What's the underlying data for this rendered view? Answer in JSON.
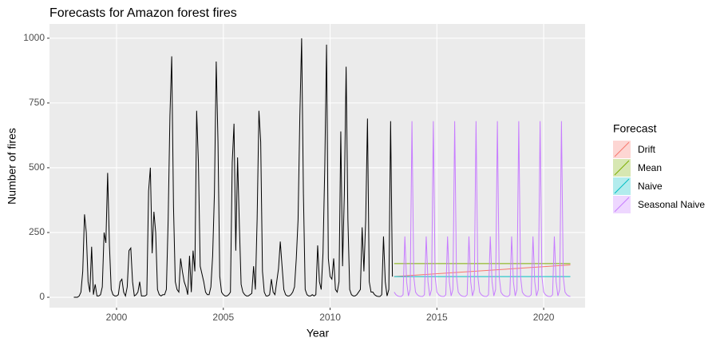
{
  "chart_data": {
    "type": "line",
    "title": "Forecasts for Amazon forest fires",
    "xlabel": "Year",
    "ylabel": "Number of fires",
    "xlim": [
      1996.86,
      2021.94
    ],
    "ylim": [
      -40,
      1055
    ],
    "xticks": [
      2000,
      2005,
      2010,
      2015,
      2020
    ],
    "yticks": [
      0,
      250,
      500,
      750,
      1000
    ],
    "grid": true,
    "legend_title": "Forecast",
    "legend_position": "right",
    "observed": {
      "color": "#000000",
      "x": [
        1998,
        1998.083,
        1998.167,
        1998.25,
        1998.333,
        1998.417,
        1998.5,
        1998.583,
        1998.667,
        1998.75,
        1998.833,
        1998.917,
        1999,
        1999.083,
        1999.167,
        1999.25,
        1999.333,
        1999.417,
        1999.5,
        1999.583,
        1999.667,
        1999.75,
        1999.833,
        1999.917,
        2000,
        2000.083,
        2000.167,
        2000.25,
        2000.333,
        2000.417,
        2000.5,
        2000.583,
        2000.667,
        2000.75,
        2000.833,
        2000.917,
        2001,
        2001.083,
        2001.167,
        2001.25,
        2001.333,
        2001.417,
        2001.5,
        2001.583,
        2001.667,
        2001.75,
        2001.833,
        2001.917,
        2002,
        2002.083,
        2002.167,
        2002.25,
        2002.333,
        2002.417,
        2002.5,
        2002.583,
        2002.667,
        2002.75,
        2002.833,
        2002.917,
        2003,
        2003.083,
        2003.167,
        2003.25,
        2003.333,
        2003.417,
        2003.5,
        2003.583,
        2003.667,
        2003.75,
        2003.833,
        2003.917,
        2004,
        2004.083,
        2004.167,
        2004.25,
        2004.333,
        2004.417,
        2004.5,
        2004.583,
        2004.667,
        2004.75,
        2004.833,
        2004.917,
        2005,
        2005.083,
        2005.167,
        2005.25,
        2005.333,
        2005.417,
        2005.5,
        2005.583,
        2005.667,
        2005.75,
        2005.833,
        2005.917,
        2006,
        2006.083,
        2006.167,
        2006.25,
        2006.333,
        2006.417,
        2006.5,
        2006.583,
        2006.667,
        2006.75,
        2006.833,
        2006.917,
        2007,
        2007.083,
        2007.167,
        2007.25,
        2007.333,
        2007.417,
        2007.5,
        2007.583,
        2007.667,
        2007.75,
        2007.833,
        2007.917,
        2008,
        2008.083,
        2008.167,
        2008.25,
        2008.333,
        2008.417,
        2008.5,
        2008.583,
        2008.667,
        2008.75,
        2008.833,
        2008.917,
        2009,
        2009.083,
        2009.167,
        2009.25,
        2009.333,
        2009.417,
        2009.5,
        2009.583,
        2009.667,
        2009.75,
        2009.833,
        2009.917,
        2010,
        2010.083,
        2010.167,
        2010.25,
        2010.333,
        2010.417,
        2010.5,
        2010.583,
        2010.667,
        2010.75,
        2010.833,
        2010.917,
        2011,
        2011.083,
        2011.167,
        2011.25,
        2011.333,
        2011.417,
        2011.5,
        2011.583,
        2011.667,
        2011.75,
        2011.833,
        2011.917,
        2012,
        2012.083,
        2012.167,
        2012.25,
        2012.333,
        2012.417,
        2012.5,
        2012.583,
        2012.667,
        2012.75,
        2012.833,
        2012.917
      ],
      "values": [
        0,
        0,
        0,
        5,
        20,
        100,
        320,
        250,
        60,
        20,
        195,
        10,
        50,
        5,
        5,
        10,
        40,
        250,
        210,
        480,
        200,
        30,
        10,
        5,
        5,
        10,
        60,
        70,
        20,
        5,
        40,
        180,
        190,
        60,
        5,
        10,
        20,
        60,
        5,
        5,
        5,
        10,
        410,
        500,
        170,
        330,
        250,
        30,
        10,
        5,
        10,
        10,
        30,
        300,
        700,
        930,
        350,
        60,
        30,
        20,
        150,
        100,
        60,
        40,
        10,
        160,
        20,
        180,
        100,
        720,
        520,
        120,
        90,
        60,
        20,
        10,
        10,
        40,
        160,
        400,
        910,
        600,
        80,
        20,
        10,
        5,
        5,
        10,
        20,
        520,
        670,
        180,
        540,
        280,
        50,
        20,
        10,
        5,
        5,
        10,
        15,
        120,
        30,
        300,
        720,
        600,
        100,
        20,
        5,
        5,
        10,
        70,
        20,
        10,
        60,
        110,
        215,
        120,
        30,
        10,
        5,
        5,
        10,
        20,
        40,
        150,
        300,
        700,
        1000,
        400,
        30,
        10,
        5,
        5,
        10,
        5,
        10,
        200,
        60,
        30,
        170,
        500,
        975,
        150,
        80,
        70,
        150,
        30,
        20,
        60,
        640,
        120,
        400,
        890,
        300,
        30,
        10,
        5,
        5,
        10,
        20,
        30,
        270,
        100,
        300,
        690,
        60,
        20,
        20,
        10,
        5,
        3,
        3,
        10,
        235,
        60,
        5,
        30,
        680,
        80
      ]
    },
    "series": [
      {
        "name": "Drift",
        "color": "#F8766D",
        "x": [
          2013,
          2021.25
        ],
        "values": [
          80,
          125
        ]
      },
      {
        "name": "Mean",
        "color": "#7CAE00",
        "x": [
          2013,
          2021.25
        ],
        "values": [
          130,
          130
        ]
      },
      {
        "name": "Naive",
        "color": "#00BFC4",
        "x": [
          2013,
          2021.25
        ],
        "values": [
          80,
          80
        ]
      },
      {
        "name": "Seasonal Naive",
        "color": "#C77CFF",
        "x": [
          2013,
          2013.083,
          2013.167,
          2013.25,
          2013.333,
          2013.417,
          2013.5,
          2013.583,
          2013.667,
          2013.75,
          2013.833,
          2013.917,
          2014,
          2014.083,
          2014.167,
          2014.25,
          2014.333,
          2014.417,
          2014.5,
          2014.583,
          2014.667,
          2014.75,
          2014.833,
          2014.917,
          2015,
          2015.083,
          2015.167,
          2015.25,
          2015.333,
          2015.417,
          2015.5,
          2015.583,
          2015.667,
          2015.75,
          2015.833,
          2015.917,
          2016,
          2016.083,
          2016.167,
          2016.25,
          2016.333,
          2016.417,
          2016.5,
          2016.583,
          2016.667,
          2016.75,
          2016.833,
          2016.917,
          2017,
          2017.083,
          2017.167,
          2017.25,
          2017.333,
          2017.417,
          2017.5,
          2017.583,
          2017.667,
          2017.75,
          2017.833,
          2017.917,
          2018,
          2018.083,
          2018.167,
          2018.25,
          2018.333,
          2018.417,
          2018.5,
          2018.583,
          2018.667,
          2018.75,
          2018.833,
          2018.917,
          2019,
          2019.083,
          2019.167,
          2019.25,
          2019.333,
          2019.417,
          2019.5,
          2019.583,
          2019.667,
          2019.75,
          2019.833,
          2019.917,
          2020,
          2020.083,
          2020.167,
          2020.25,
          2020.333,
          2020.417,
          2020.5,
          2020.583,
          2020.667,
          2020.75,
          2020.833,
          2020.917,
          2021,
          2021.083,
          2021.167,
          2021.25
        ],
        "values": [
          20,
          10,
          5,
          3,
          3,
          10,
          235,
          60,
          5,
          30,
          680,
          80,
          20,
          10,
          5,
          3,
          3,
          10,
          235,
          60,
          5,
          30,
          680,
          80,
          20,
          10,
          5,
          3,
          3,
          10,
          235,
          60,
          5,
          30,
          680,
          80,
          20,
          10,
          5,
          3,
          3,
          10,
          235,
          60,
          5,
          30,
          680,
          80,
          20,
          10,
          5,
          3,
          3,
          10,
          235,
          60,
          5,
          30,
          680,
          80,
          20,
          10,
          5,
          3,
          3,
          10,
          235,
          60,
          5,
          30,
          680,
          80,
          20,
          10,
          5,
          3,
          3,
          10,
          235,
          60,
          5,
          30,
          680,
          80,
          20,
          10,
          5,
          3,
          3,
          10,
          235,
          60,
          5,
          30,
          680,
          80,
          20,
          10,
          5,
          3
        ]
      }
    ]
  }
}
